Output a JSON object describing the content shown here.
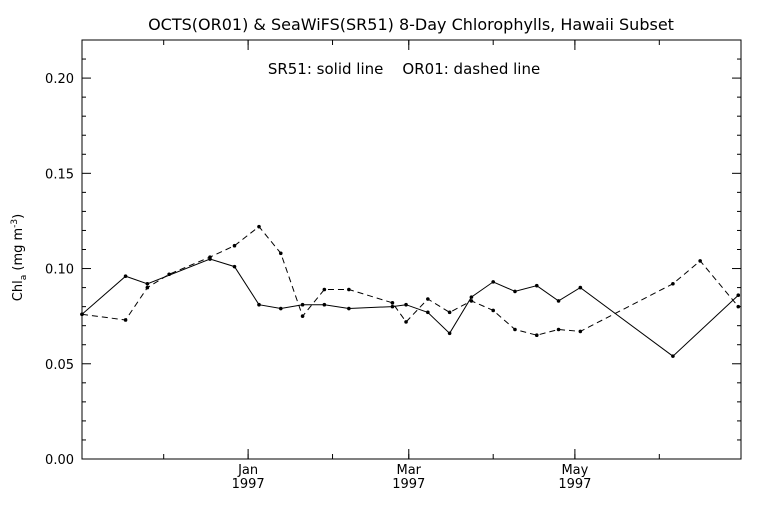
{
  "chart_data": {
    "type": "line",
    "title": "OCTS(OR01) & SeaWiFS(SR51) 8-Day Chlorophylls, Hawaii Subset",
    "annotation": "SR51: solid line    OR01: dashed line",
    "ylabel_main": "Chl",
    "ylabel_sub": "a",
    "ylabel_units": " (mg m",
    "ylabel_sup": "-3",
    "ylabel_close": ")",
    "ylim": [
      0.0,
      0.22
    ],
    "yticks": [
      0.0,
      0.05,
      0.1,
      0.15,
      0.2
    ],
    "ytick_labels": [
      "0.00",
      "0.05",
      "0.10",
      "0.15",
      "0.20"
    ],
    "xlim": [
      "1996-11-01",
      "1997-07-01"
    ],
    "xticks": [
      {
        "date": "1997-01-01",
        "month": "Jan",
        "year": "1997"
      },
      {
        "date": "1997-03-01",
        "month": "Mar",
        "year": "1997"
      },
      {
        "date": "1997-05-01",
        "month": "May",
        "year": "1997"
      }
    ],
    "xminor_ticks": [
      "1996-11-01",
      "1996-12-01",
      "1997-01-01",
      "1997-02-01",
      "1997-03-01",
      "1997-04-01",
      "1997-05-01",
      "1997-06-01",
      "1997-07-01"
    ],
    "grid": false,
    "series": [
      {
        "name": "SR51",
        "style": "solid",
        "color": "#000000",
        "points": [
          {
            "x": "1996-11-01",
            "y": 0.076
          },
          {
            "x": "1996-11-17",
            "y": 0.096
          },
          {
            "x": "1996-11-25",
            "y": 0.092
          },
          {
            "x": "1996-12-18",
            "y": 0.105
          },
          {
            "x": "1996-12-27",
            "y": 0.101
          },
          {
            "x": "1997-01-05",
            "y": 0.081
          },
          {
            "x": "1997-01-13",
            "y": 0.079
          },
          {
            "x": "1997-01-21",
            "y": 0.081
          },
          {
            "x": "1997-01-29",
            "y": 0.081
          },
          {
            "x": "1997-02-07",
            "y": 0.079
          },
          {
            "x": "1997-02-23",
            "y": 0.08
          },
          {
            "x": "1997-02-28",
            "y": 0.081
          },
          {
            "x": "1997-03-08",
            "y": 0.077
          },
          {
            "x": "1997-03-16",
            "y": 0.066
          },
          {
            "x": "1997-03-24",
            "y": 0.085
          },
          {
            "x": "1997-04-01",
            "y": 0.093
          },
          {
            "x": "1997-04-09",
            "y": 0.088
          },
          {
            "x": "1997-04-17",
            "y": 0.091
          },
          {
            "x": "1997-04-25",
            "y": 0.083
          },
          {
            "x": "1997-05-03",
            "y": 0.09
          },
          {
            "x": "1997-06-06",
            "y": 0.054
          },
          {
            "x": "1997-06-30",
            "y": 0.086
          }
        ]
      },
      {
        "name": "OR01",
        "style": "dashed",
        "color": "#000000",
        "points": [
          {
            "x": "1996-11-01",
            "y": 0.076
          },
          {
            "x": "1996-11-17",
            "y": 0.073
          },
          {
            "x": "1996-11-25",
            "y": 0.09
          },
          {
            "x": "1996-12-03",
            "y": 0.097
          },
          {
            "x": "1996-12-18",
            "y": 0.106
          },
          {
            "x": "1996-12-27",
            "y": 0.112
          },
          {
            "x": "1997-01-05",
            "y": 0.122
          },
          {
            "x": "1997-01-13",
            "y": 0.108
          },
          {
            "x": "1997-01-21",
            "y": 0.075
          },
          {
            "x": "1997-01-29",
            "y": 0.089
          },
          {
            "x": "1997-02-07",
            "y": 0.089
          },
          {
            "x": "1997-02-23",
            "y": 0.082
          },
          {
            "x": "1997-02-28",
            "y": 0.072
          },
          {
            "x": "1997-03-08",
            "y": 0.084
          },
          {
            "x": "1997-03-16",
            "y": 0.077
          },
          {
            "x": "1997-03-24",
            "y": 0.083
          },
          {
            "x": "1997-04-01",
            "y": 0.078
          },
          {
            "x": "1997-04-09",
            "y": 0.068
          },
          {
            "x": "1997-04-17",
            "y": 0.065
          },
          {
            "x": "1997-04-25",
            "y": 0.068
          },
          {
            "x": "1997-05-03",
            "y": 0.067
          },
          {
            "x": "1997-06-06",
            "y": 0.092
          },
          {
            "x": "1997-06-16",
            "y": 0.104
          },
          {
            "x": "1997-06-30",
            "y": 0.08
          }
        ]
      }
    ]
  }
}
